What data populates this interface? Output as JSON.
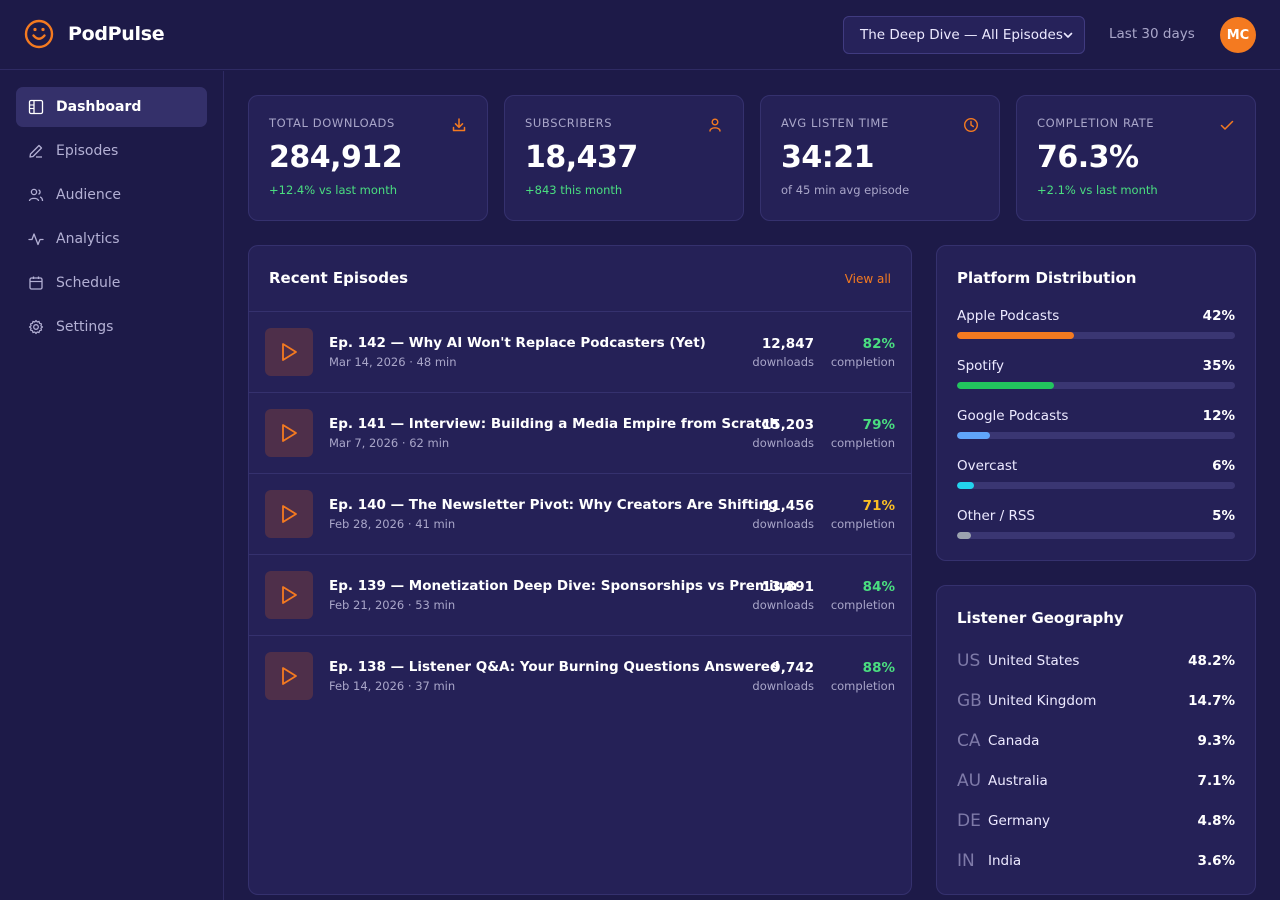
{
  "app": {
    "name": "PodPulse"
  },
  "header": {
    "show_selector": "The Deep Dive — All Episodes",
    "date_range": "Last 30 days",
    "avatar_initials": "MC"
  },
  "sidebar": {
    "items": [
      {
        "label": "Dashboard",
        "icon": "dashboard-icon",
        "active": true
      },
      {
        "label": "Episodes",
        "icon": "pen-icon"
      },
      {
        "label": "Audience",
        "icon": "users-icon"
      },
      {
        "label": "Analytics",
        "icon": "activity-icon"
      },
      {
        "label": "Schedule",
        "icon": "calendar-icon"
      },
      {
        "label": "Settings",
        "icon": "gear-icon"
      }
    ]
  },
  "kpis": [
    {
      "label": "TOTAL DOWNLOADS",
      "value": "284,912",
      "sub": "+12.4% vs last month",
      "icon": "download-icon"
    },
    {
      "label": "SUBSCRIBERS",
      "value": "18,437",
      "sub": "+843 this month",
      "icon": "user-icon"
    },
    {
      "label": "AVG LISTEN TIME",
      "value": "34:21",
      "sub": "of 45 min avg episode",
      "icon": "clock-icon"
    },
    {
      "label": "COMPLETION RATE",
      "value": "76.3%",
      "sub": "+2.1% vs last month",
      "icon": "check-icon"
    }
  ],
  "episodes": {
    "title": "Recent Episodes",
    "view_all": "View all",
    "downloads_label": "downloads",
    "completion_label": "completion",
    "items": [
      {
        "title": "Ep. 142 — Why AI Won't Replace Podcasters (Yet)",
        "meta": "Mar 14, 2026 · 48 min",
        "downloads": "12,847",
        "completion": "82%"
      },
      {
        "title": "Ep. 141 — Interview: Building a Media Empire from Scratch",
        "meta": "Mar 7, 2026 · 62 min",
        "downloads": "15,203",
        "completion": "79%"
      },
      {
        "title": "Ep. 140 — The Newsletter Pivot: Why Creators Are Shifting",
        "meta": "Feb 28, 2026 · 41 min",
        "downloads": "11,456",
        "completion": "71%"
      },
      {
        "title": "Ep. 139 — Monetization Deep Dive: Sponsorships vs Premium",
        "meta": "Feb 21, 2026 · 53 min",
        "downloads": "13,891",
        "completion": "84%"
      },
      {
        "title": "Ep. 138 — Listener Q&A: Your Burning Questions Answered",
        "meta": "Feb 14, 2026 · 37 min",
        "downloads": "9,742",
        "completion": "88%"
      }
    ]
  },
  "platforms": {
    "title": "Platform Distribution",
    "items": [
      {
        "name": "Apple Podcasts",
        "pct": "42%",
        "value": 42,
        "color": "#f47a20"
      },
      {
        "name": "Spotify",
        "pct": "35%",
        "value": 35,
        "color": "#22c55e"
      },
      {
        "name": "Google Podcasts",
        "pct": "12%",
        "value": 12,
        "color": "#60a5fa"
      },
      {
        "name": "Overcast",
        "pct": "6%",
        "value": 6,
        "color": "#22d3ee"
      },
      {
        "name": "Other / RSS",
        "pct": "5%",
        "value": 5,
        "color": "#9ca3af"
      }
    ]
  },
  "geography": {
    "title": "Listener Geography",
    "items": [
      {
        "code": "US",
        "name": "United States",
        "pct": "48.2%"
      },
      {
        "code": "GB",
        "name": "United Kingdom",
        "pct": "14.7%"
      },
      {
        "code": "CA",
        "name": "Canada",
        "pct": "9.3%"
      },
      {
        "code": "AU",
        "name": "Australia",
        "pct": "7.1%"
      },
      {
        "code": "DE",
        "name": "Germany",
        "pct": "4.8%"
      },
      {
        "code": "IN",
        "name": "India",
        "pct": "3.6%"
      }
    ]
  },
  "colors": {
    "accent": "#f47a20",
    "positive": "#4ade80",
    "warning": "#fbbf24",
    "background": "#1d1a48",
    "card": "#252157"
  }
}
